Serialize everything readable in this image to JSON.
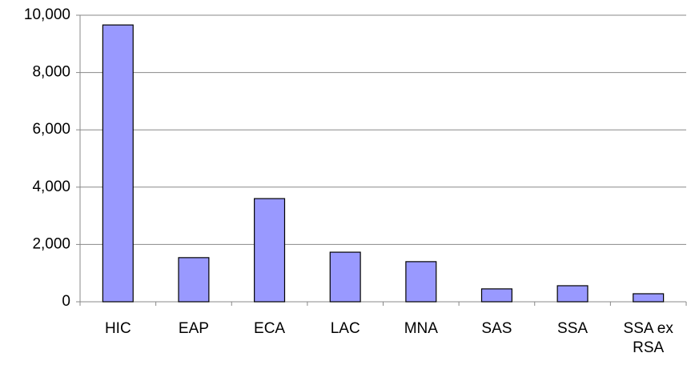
{
  "chart_data": {
    "type": "bar",
    "categories": [
      "HIC",
      "EAP",
      "ECA",
      "LAC",
      "MNA",
      "SAS",
      "SSA",
      "SSA ex RSA"
    ],
    "values": [
      9660,
      1540,
      3600,
      1730,
      1400,
      450,
      560,
      280
    ],
    "color": "#9999ff",
    "ylim": [
      0,
      10000
    ],
    "yticks": [
      0,
      {
        "value": 2000,
        "label": "2,000"
      },
      {
        "value": 4000,
        "label": "4,000"
      },
      {
        "value": 6000,
        "label": "6,000"
      },
      {
        "value": 8000,
        "label": "8,000"
      },
      {
        "value": 10000,
        "label": "10,000"
      }
    ],
    "grid": true
  }
}
